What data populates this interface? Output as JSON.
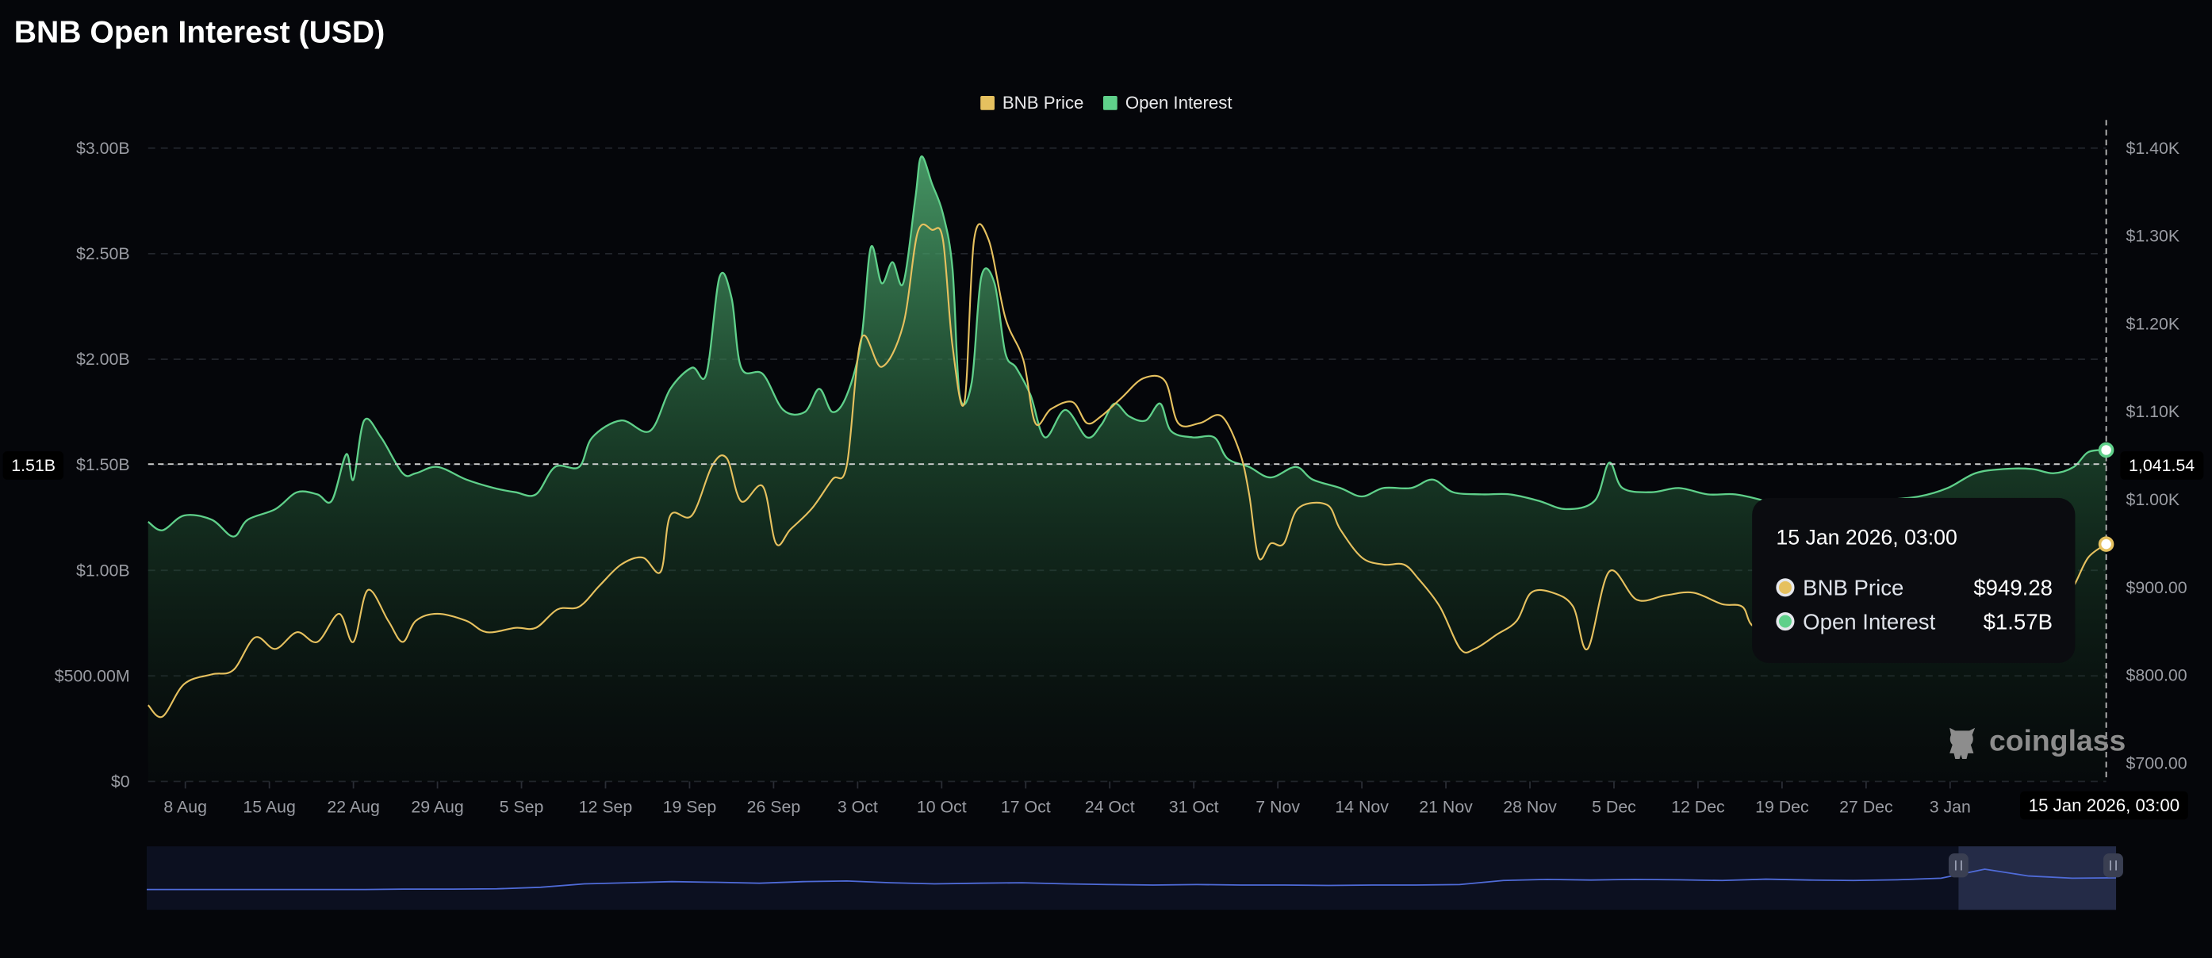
{
  "chart_data": {
    "type": "line",
    "title": "BNB Open Interest (USD)",
    "legend": {
      "placement": "top-center",
      "entries": [
        "BNB Price",
        "Open Interest"
      ]
    },
    "x_unit": "days since 8 Aug 2025",
    "x_ticks": [
      {
        "day": 0,
        "label": "8 Aug"
      },
      {
        "day": 7,
        "label": "15 Aug"
      },
      {
        "day": 14,
        "label": "22 Aug"
      },
      {
        "day": 21,
        "label": "29 Aug"
      },
      {
        "day": 28,
        "label": "5 Sep"
      },
      {
        "day": 35,
        "label": "12 Sep"
      },
      {
        "day": 42,
        "label": "19 Sep"
      },
      {
        "day": 49,
        "label": "26 Sep"
      },
      {
        "day": 56,
        "label": "3 Oct"
      },
      {
        "day": 63,
        "label": "10 Oct"
      },
      {
        "day": 70,
        "label": "17 Oct"
      },
      {
        "day": 77,
        "label": "24 Oct"
      },
      {
        "day": 84,
        "label": "31 Oct"
      },
      {
        "day": 91,
        "label": "7 Nov"
      },
      {
        "day": 98,
        "label": "14 Nov"
      },
      {
        "day": 105,
        "label": "21 Nov"
      },
      {
        "day": 112,
        "label": "28 Nov"
      },
      {
        "day": 119,
        "label": "5 Dec"
      },
      {
        "day": 126,
        "label": "12 Dec"
      },
      {
        "day": 133,
        "label": "19 Dec"
      },
      {
        "day": 140,
        "label": "27 Dec"
      },
      {
        "day": 147,
        "label": "3 Jan"
      }
    ],
    "xlim": [
      -3.1,
      160
    ],
    "y_left": {
      "label": "Open Interest",
      "ylim": [
        0,
        3.0
      ],
      "ticks": [
        {
          "v": 0,
          "label": "$0"
        },
        {
          "v": 0.5,
          "label": "$500.00M"
        },
        {
          "v": 1.0,
          "label": "$1.00B"
        },
        {
          "v": 1.5,
          "label": "$1.50B"
        },
        {
          "v": 2.0,
          "label": "$2.00B"
        },
        {
          "v": 2.5,
          "label": "$2.50B"
        },
        {
          "v": 3.0,
          "label": "$3.00B"
        }
      ]
    },
    "y_right": {
      "label": "BNB Price",
      "ylim": [
        700,
        1420
      ],
      "ticks": [
        {
          "v": 700,
          "label": "$700.00"
        },
        {
          "v": 800,
          "label": "$800.00"
        },
        {
          "v": 900,
          "label": "$900.00"
        },
        {
          "v": 1000,
          "label": "$1.00K"
        },
        {
          "v": 1100,
          "label": "$1.10K"
        },
        {
          "v": 1200,
          "label": "$1.20K"
        },
        {
          "v": 1300,
          "label": "$1.30K"
        },
        {
          "v": 1400,
          "label": "$1.40K"
        }
      ]
    },
    "grid": true,
    "series": [
      {
        "name": "Open Interest",
        "axis": "left",
        "color": "#5fd08a",
        "unit": "B USD",
        "points": [
          [
            -3.1,
            1.23
          ],
          [
            -1.9,
            1.19
          ],
          [
            -0.1,
            1.26
          ],
          [
            2.2,
            1.24
          ],
          [
            4.0,
            1.16
          ],
          [
            5.2,
            1.24
          ],
          [
            7.5,
            1.29
          ],
          [
            9.3,
            1.37
          ],
          [
            11.0,
            1.36
          ],
          [
            12.2,
            1.33
          ],
          [
            13.4,
            1.55
          ],
          [
            14.0,
            1.43
          ],
          [
            14.9,
            1.71
          ],
          [
            16.3,
            1.63
          ],
          [
            18.1,
            1.46
          ],
          [
            19.2,
            1.46
          ],
          [
            21.0,
            1.49
          ],
          [
            23.4,
            1.43
          ],
          [
            25.7,
            1.39
          ],
          [
            27.5,
            1.37
          ],
          [
            29.2,
            1.36
          ],
          [
            30.8,
            1.49
          ],
          [
            32.8,
            1.49
          ],
          [
            33.9,
            1.63
          ],
          [
            36.3,
            1.71
          ],
          [
            38.7,
            1.66
          ],
          [
            40.4,
            1.86
          ],
          [
            42.2,
            1.96
          ],
          [
            43.4,
            1.93
          ],
          [
            44.5,
            2.39
          ],
          [
            45.5,
            2.29
          ],
          [
            46.3,
            1.96
          ],
          [
            48.1,
            1.93
          ],
          [
            49.8,
            1.76
          ],
          [
            51.6,
            1.75
          ],
          [
            52.8,
            1.86
          ],
          [
            53.9,
            1.75
          ],
          [
            55.1,
            1.83
          ],
          [
            56.3,
            2.09
          ],
          [
            57.1,
            2.53
          ],
          [
            58.0,
            2.36
          ],
          [
            58.9,
            2.46
          ],
          [
            59.8,
            2.36
          ],
          [
            60.8,
            2.76
          ],
          [
            61.3,
            2.96
          ],
          [
            62.2,
            2.83
          ],
          [
            63.1,
            2.69
          ],
          [
            63.9,
            2.43
          ],
          [
            64.5,
            1.83
          ],
          [
            65.5,
            1.89
          ],
          [
            66.3,
            2.39
          ],
          [
            67.4,
            2.36
          ],
          [
            68.3,
            2.03
          ],
          [
            69.2,
            1.96
          ],
          [
            70.4,
            1.83
          ],
          [
            71.6,
            1.63
          ],
          [
            73.3,
            1.76
          ],
          [
            75.1,
            1.63
          ],
          [
            76.3,
            1.69
          ],
          [
            77.4,
            1.79
          ],
          [
            78.6,
            1.73
          ],
          [
            80.0,
            1.71
          ],
          [
            81.2,
            1.79
          ],
          [
            82.1,
            1.66
          ],
          [
            83.9,
            1.63
          ],
          [
            85.7,
            1.63
          ],
          [
            86.8,
            1.53
          ],
          [
            88.6,
            1.49
          ],
          [
            90.4,
            1.44
          ],
          [
            92.5,
            1.49
          ],
          [
            93.9,
            1.43
          ],
          [
            96.2,
            1.39
          ],
          [
            98.0,
            1.35
          ],
          [
            99.8,
            1.39
          ],
          [
            102.1,
            1.39
          ],
          [
            103.9,
            1.43
          ],
          [
            105.6,
            1.37
          ],
          [
            108.0,
            1.36
          ],
          [
            110.3,
            1.36
          ],
          [
            112.7,
            1.33
          ],
          [
            115.0,
            1.29
          ],
          [
            117.4,
            1.33
          ],
          [
            118.6,
            1.51
          ],
          [
            119.7,
            1.39
          ],
          [
            122.1,
            1.37
          ],
          [
            124.4,
            1.39
          ],
          [
            126.8,
            1.36
          ],
          [
            129.1,
            1.36
          ],
          [
            131.5,
            1.33
          ],
          [
            133.8,
            1.29
          ],
          [
            137.4,
            1.31
          ],
          [
            140.9,
            1.33
          ],
          [
            144.4,
            1.35
          ],
          [
            146.8,
            1.39
          ],
          [
            149.1,
            1.46
          ],
          [
            151.5,
            1.48
          ],
          [
            153.8,
            1.48
          ],
          [
            155.6,
            1.46
          ],
          [
            157.3,
            1.49
          ],
          [
            158.5,
            1.56
          ],
          [
            160.0,
            1.57
          ]
        ]
      },
      {
        "name": "BNB Price",
        "axis": "right",
        "color": "#e6c15f",
        "unit": "USD",
        "points": [
          [
            -3.1,
            766
          ],
          [
            -1.9,
            753
          ],
          [
            -0.1,
            790
          ],
          [
            2.2,
            801
          ],
          [
            4.0,
            806
          ],
          [
            5.8,
            843
          ],
          [
            7.5,
            830
          ],
          [
            9.3,
            849
          ],
          [
            11.0,
            838
          ],
          [
            12.8,
            870
          ],
          [
            14.0,
            838
          ],
          [
            15.2,
            897
          ],
          [
            16.9,
            862
          ],
          [
            18.1,
            838
          ],
          [
            19.2,
            862
          ],
          [
            21.0,
            870
          ],
          [
            23.4,
            862
          ],
          [
            25.1,
            849
          ],
          [
            27.5,
            854
          ],
          [
            29.2,
            854
          ],
          [
            31.0,
            875
          ],
          [
            32.8,
            878
          ],
          [
            34.5,
            902
          ],
          [
            36.3,
            926
          ],
          [
            38.1,
            934
          ],
          [
            39.6,
            918
          ],
          [
            40.4,
            982
          ],
          [
            42.2,
            982
          ],
          [
            43.9,
            1039
          ],
          [
            45.1,
            1047
          ],
          [
            46.3,
            998
          ],
          [
            48.1,
            1015
          ],
          [
            49.2,
            950
          ],
          [
            50.4,
            966
          ],
          [
            52.2,
            990
          ],
          [
            53.9,
            1023
          ],
          [
            55.1,
            1039
          ],
          [
            56.3,
            1183
          ],
          [
            58.0,
            1151
          ],
          [
            59.8,
            1199
          ],
          [
            61.0,
            1304
          ],
          [
            62.2,
            1307
          ],
          [
            63.1,
            1296
          ],
          [
            63.9,
            1175
          ],
          [
            64.9,
            1111
          ],
          [
            65.7,
            1296
          ],
          [
            66.9,
            1296
          ],
          [
            68.3,
            1207
          ],
          [
            69.8,
            1159
          ],
          [
            70.8,
            1087
          ],
          [
            72.1,
            1103
          ],
          [
            73.9,
            1111
          ],
          [
            75.1,
            1087
          ],
          [
            76.3,
            1095
          ],
          [
            78.0,
            1116
          ],
          [
            79.8,
            1138
          ],
          [
            81.6,
            1135
          ],
          [
            82.7,
            1087
          ],
          [
            84.5,
            1087
          ],
          [
            86.3,
            1095
          ],
          [
            87.8,
            1055
          ],
          [
            88.6,
            1007
          ],
          [
            89.4,
            934
          ],
          [
            90.4,
            950
          ],
          [
            91.5,
            950
          ],
          [
            92.7,
            990
          ],
          [
            95.1,
            994
          ],
          [
            96.2,
            966
          ],
          [
            98.0,
            934
          ],
          [
            99.8,
            926
          ],
          [
            101.5,
            926
          ],
          [
            102.7,
            910
          ],
          [
            104.5,
            878
          ],
          [
            106.2,
            830
          ],
          [
            107.4,
            830
          ],
          [
            109.2,
            846
          ],
          [
            110.9,
            862
          ],
          [
            112.1,
            894
          ],
          [
            113.9,
            894
          ],
          [
            115.6,
            878
          ],
          [
            116.8,
            830
          ],
          [
            118.6,
            918
          ],
          [
            120.9,
            886
          ],
          [
            123.3,
            891
          ],
          [
            125.6,
            894
          ],
          [
            128.0,
            881
          ],
          [
            129.7,
            878
          ],
          [
            130.9,
            854
          ],
          [
            135.0,
            862
          ],
          [
            140.9,
            878
          ],
          [
            146.8,
            886
          ],
          [
            152.6,
            886
          ],
          [
            156.7,
            902
          ],
          [
            157.3,
            902
          ],
          [
            158.5,
            934
          ],
          [
            160.0,
            949.28
          ]
        ]
      }
    ],
    "crosshair": {
      "left_label": "1.51B",
      "right_label": "1,041.54",
      "x_label": "15 Jan 2026, 03:00"
    },
    "tooltip": {
      "date": "15 Jan 2026, 03:00",
      "rows": [
        {
          "name": "BNB Price",
          "value": "$949.28",
          "color": "#e6c15f"
        },
        {
          "name": "Open Interest",
          "value": "$1.57B",
          "color": "#5fd08a"
        }
      ]
    },
    "navigator": {
      "color": "#4f6bd8",
      "values": [
        0.9,
        0.9,
        0.9,
        0.9,
        0.9,
        0.9,
        0.92,
        0.92,
        0.93,
        1.0,
        1.15,
        1.2,
        1.25,
        1.22,
        1.18,
        1.25,
        1.28,
        1.2,
        1.15,
        1.18,
        1.2,
        1.15,
        1.12,
        1.1,
        1.12,
        1.1,
        1.1,
        1.08,
        1.1,
        1.1,
        1.12,
        1.3,
        1.35,
        1.32,
        1.35,
        1.33,
        1.3,
        1.36,
        1.32,
        1.3,
        1.33,
        1.4,
        1.8,
        1.5,
        1.4,
        1.42
      ],
      "selection": [
        0.92,
        1.0
      ]
    }
  },
  "watermark": "coinglass"
}
